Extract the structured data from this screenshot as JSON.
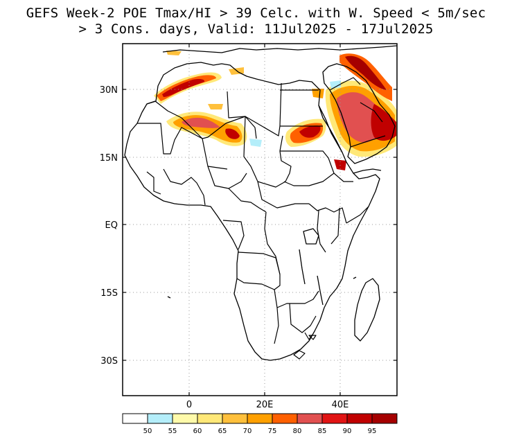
{
  "title": {
    "line1": "GEFS Week-2 POE Tmax/HI > 39 Celc. with W. Speed < 5m/sec",
    "line2": "> 3 Cons. days, Valid: 11Jul2025 - 17Jul2025"
  },
  "map": {
    "region": "Africa and Arabian Peninsula",
    "lat_labels": [
      "30N",
      "15N",
      "EQ",
      "15S",
      "30S"
    ],
    "lon_labels": [
      "0",
      "20E",
      "40E"
    ],
    "gridlines": "dotted"
  },
  "colorbar": {
    "ticks": [
      "50",
      "55",
      "60",
      "65",
      "70",
      "75",
      "80",
      "85",
      "90",
      "95"
    ],
    "colors": [
      "#ffffff",
      "#b4eefa",
      "#fffaaa",
      "#ffe878",
      "#ffc03c",
      "#ffa000",
      "#ff6000",
      "#e15050",
      "#e11414",
      "#c00000",
      "#a50000"
    ]
  },
  "hotspots": [
    {
      "name": "Northern Algeria/Morocco",
      "level": "85-95"
    },
    {
      "name": "Central Sahara",
      "level": "70-85"
    },
    {
      "name": "Sudan/Chad",
      "level": "75-90"
    },
    {
      "name": "Arabian Peninsula",
      "level": "85-95"
    },
    {
      "name": "Iraq / Persian Gulf",
      "level": "90-95"
    }
  ]
}
